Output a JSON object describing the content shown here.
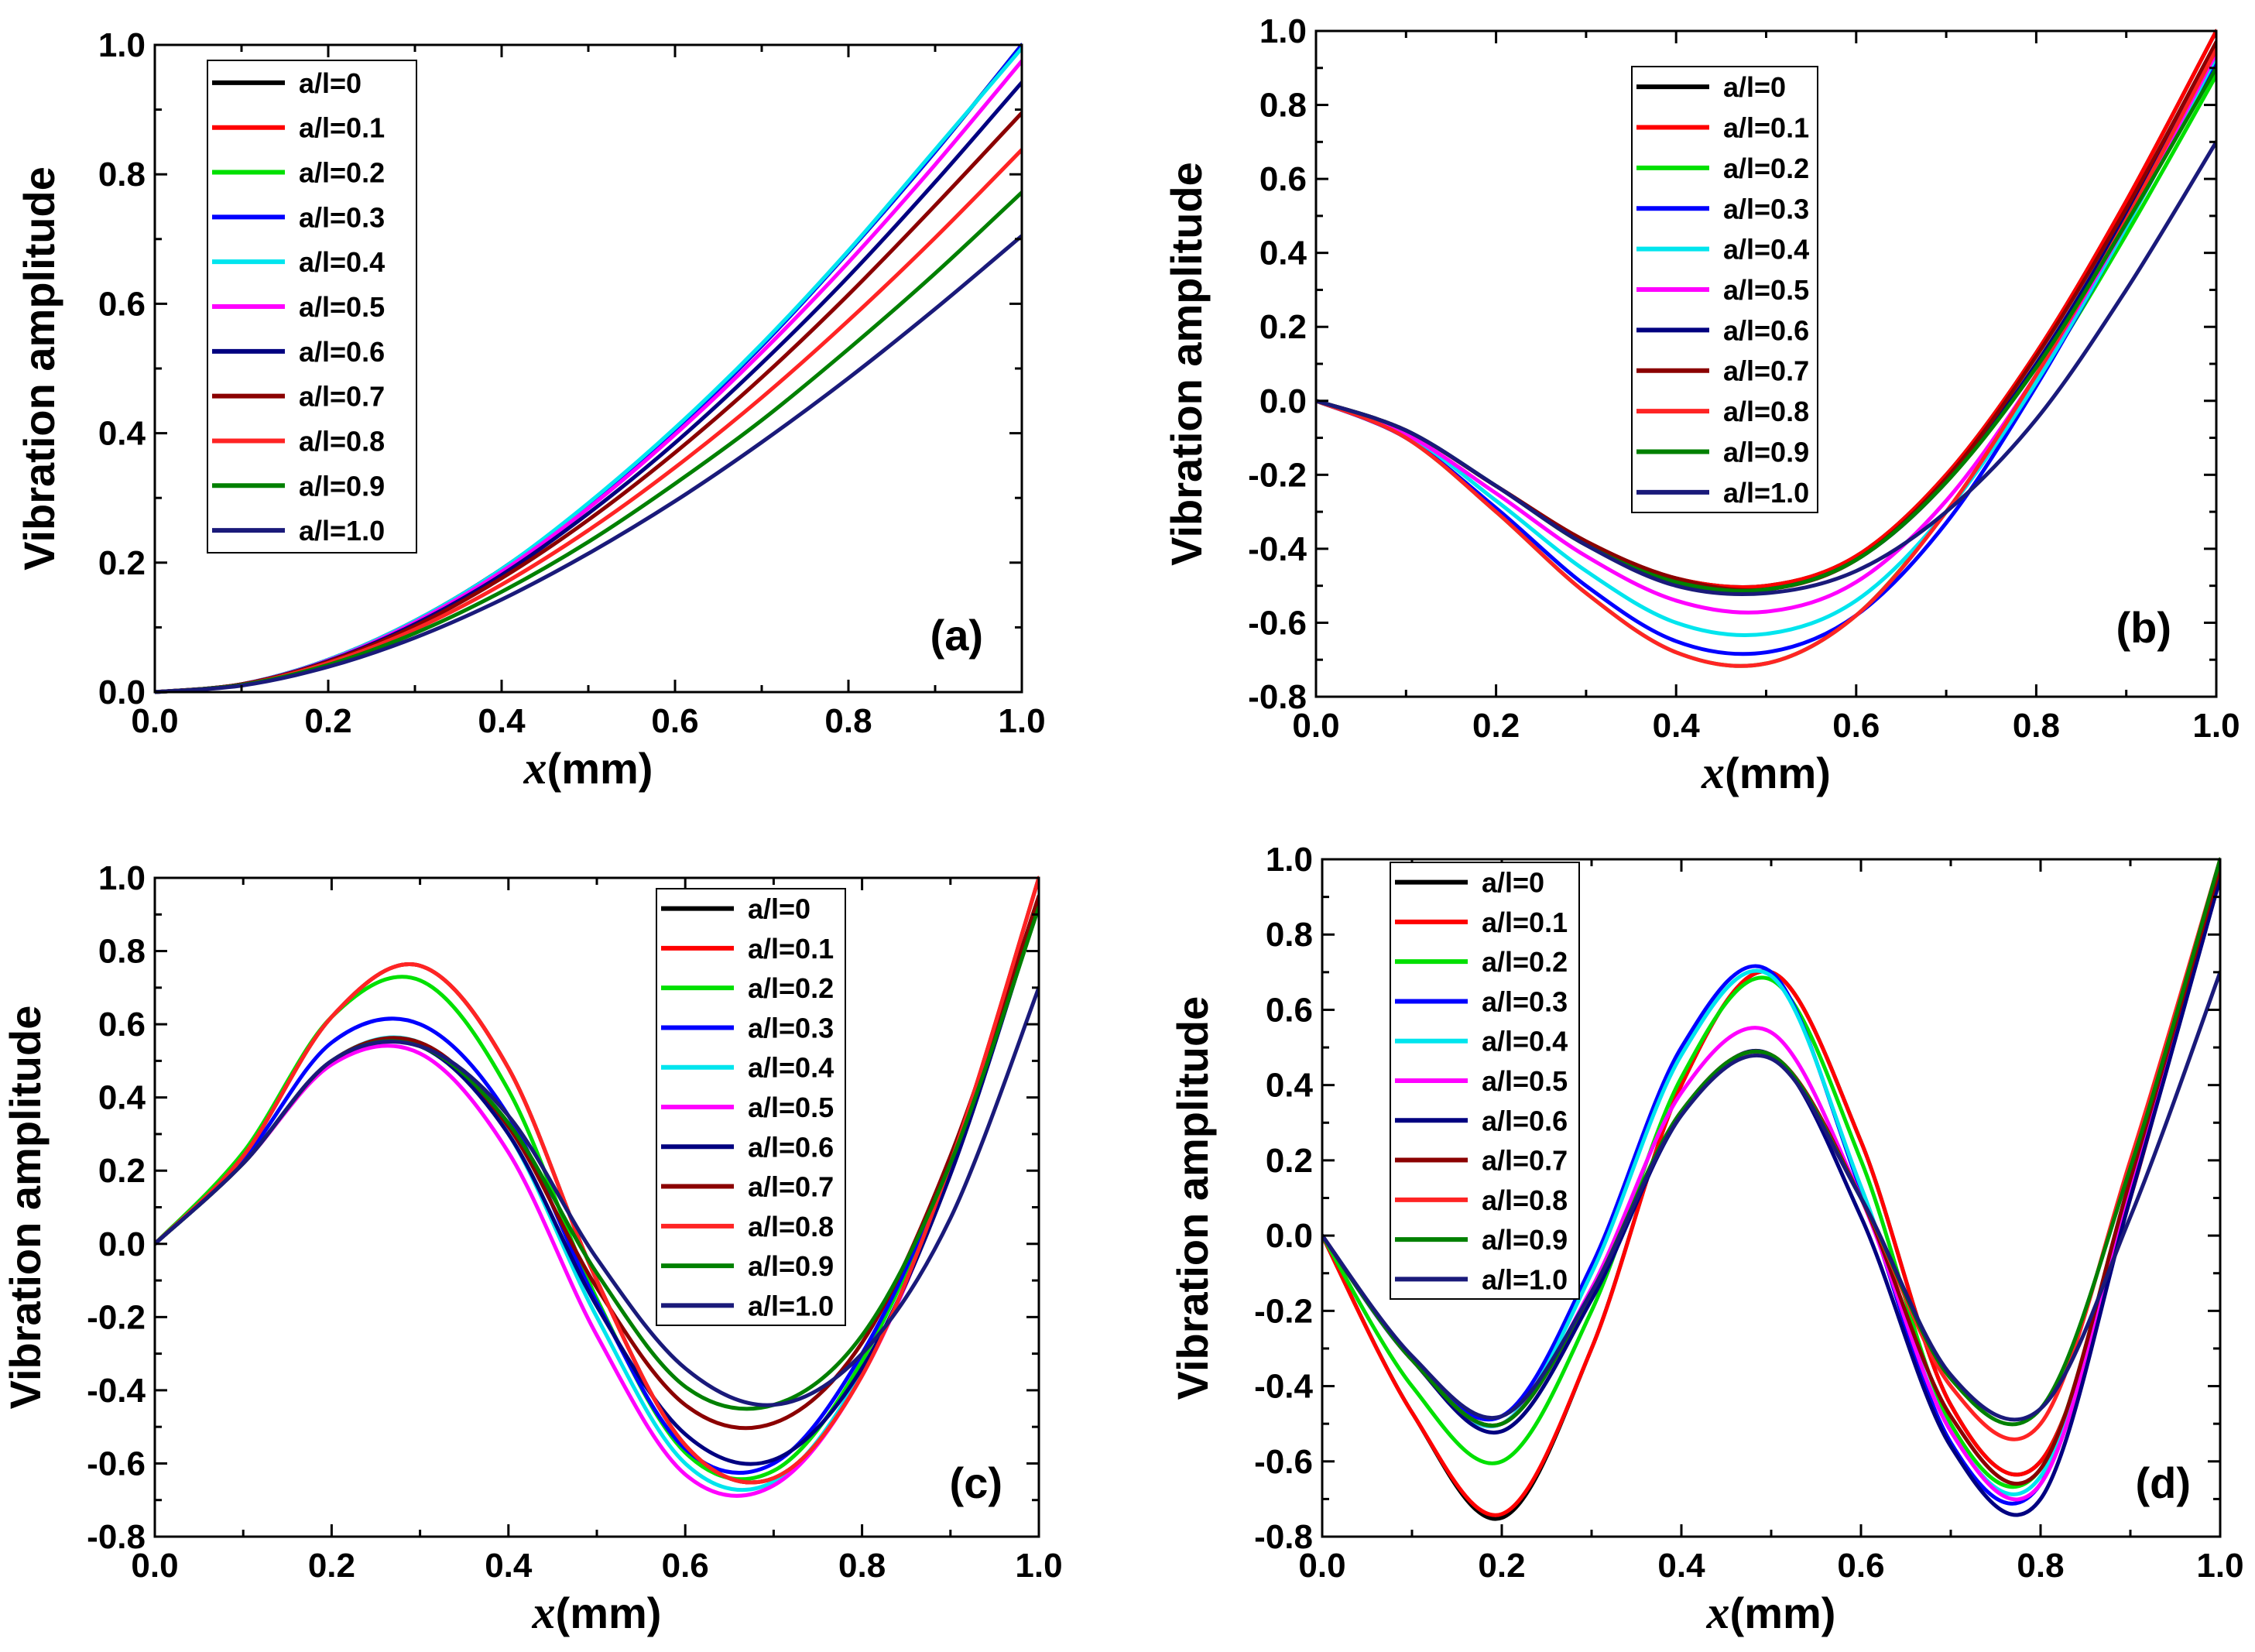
{
  "chart_data": [
    {
      "type": "line",
      "panel_label": "(a)",
      "xlabel_var": "x",
      "xlabel_unit": "(mm)",
      "ylabel": "Vibration amplitude",
      "xlim": [
        0.0,
        1.0
      ],
      "ylim": [
        0.0,
        1.0
      ],
      "xticks": [
        "0.0",
        "0.2",
        "0.4",
        "0.6",
        "0.8",
        "1.0"
      ],
      "yticks": [
        "0.0",
        "0.2",
        "0.4",
        "0.6",
        "0.8",
        "1.0"
      ],
      "legend_position": "top-left",
      "x": [
        0,
        0.1,
        0.2,
        0.3,
        0.4,
        0.5,
        0.6,
        0.7,
        0.8,
        0.9,
        1.0
      ],
      "series": [
        {
          "name": "a/l=0",
          "color": "#000000",
          "values": [
            0,
            0.012,
            0.05,
            0.11,
            0.19,
            0.29,
            0.405,
            0.535,
            0.68,
            0.835,
            1.0
          ]
        },
        {
          "name": "a/l=0.1",
          "color": "#ff0000",
          "values": [
            0,
            0.012,
            0.05,
            0.11,
            0.19,
            0.29,
            0.405,
            0.535,
            0.68,
            0.835,
            1.0
          ]
        },
        {
          "name": "a/l=0.2",
          "color": "#00e000",
          "values": [
            0,
            0.012,
            0.05,
            0.11,
            0.19,
            0.29,
            0.405,
            0.535,
            0.68,
            0.835,
            1.0
          ]
        },
        {
          "name": "a/l=0.3",
          "color": "#0000ff",
          "values": [
            0,
            0.012,
            0.05,
            0.11,
            0.19,
            0.29,
            0.405,
            0.535,
            0.68,
            0.835,
            1.0
          ]
        },
        {
          "name": "a/l=0.4",
          "color": "#00e5ee",
          "values": [
            0,
            0.012,
            0.05,
            0.11,
            0.19,
            0.292,
            0.408,
            0.538,
            0.682,
            0.838,
            0.995
          ]
        },
        {
          "name": "a/l=0.5",
          "color": "#ff00ff",
          "values": [
            0,
            0.012,
            0.049,
            0.108,
            0.186,
            0.284,
            0.398,
            0.525,
            0.664,
            0.815,
            0.975
          ]
        },
        {
          "name": "a/l=0.6",
          "color": "#000080",
          "values": [
            0,
            0.012,
            0.048,
            0.105,
            0.181,
            0.276,
            0.385,
            0.508,
            0.642,
            0.788,
            0.942
          ]
        },
        {
          "name": "a/l=0.7",
          "color": "#8b0000",
          "values": [
            0,
            0.012,
            0.047,
            0.102,
            0.176,
            0.266,
            0.37,
            0.486,
            0.614,
            0.752,
            0.895
          ]
        },
        {
          "name": "a/l=0.8",
          "color": "#ff2424",
          "values": [
            0,
            0.011,
            0.045,
            0.097,
            0.166,
            0.25,
            0.347,
            0.455,
            0.574,
            0.702,
            0.838
          ]
        },
        {
          "name": "a/l=0.9",
          "color": "#008000",
          "values": [
            0,
            0.011,
            0.042,
            0.091,
            0.155,
            0.232,
            0.322,
            0.42,
            0.53,
            0.647,
            0.772
          ]
        },
        {
          "name": "a/l=1.0",
          "color": "#1a1a7a",
          "values": [
            0,
            0.01,
            0.039,
            0.084,
            0.143,
            0.214,
            0.295,
            0.386,
            0.485,
            0.592,
            0.705
          ]
        }
      ]
    },
    {
      "type": "line",
      "panel_label": "(b)",
      "xlabel_var": "x",
      "xlabel_unit": "(mm)",
      "ylabel": "Vibration amplitude",
      "xlim": [
        0.0,
        1.0
      ],
      "ylim": [
        -0.8,
        1.0
      ],
      "xticks": [
        "0.0",
        "0.2",
        "0.4",
        "0.6",
        "0.8",
        "1.0"
      ],
      "yticks": [
        "-0.8",
        "-0.6",
        "-0.4",
        "-0.2",
        "0.0",
        "0.2",
        "0.4",
        "0.6",
        "0.8",
        "1.0"
      ],
      "legend_position": "top-center",
      "x": [
        0,
        0.1,
        0.2,
        0.3,
        0.4,
        0.5,
        0.6,
        0.7,
        0.8,
        0.9,
        1.0
      ],
      "series": [
        {
          "name": "a/l=0",
          "color": "#000000",
          "values": [
            0,
            -0.08,
            -0.23,
            -0.38,
            -0.48,
            -0.5,
            -0.42,
            -0.2,
            0.13,
            0.54,
            1.0
          ]
        },
        {
          "name": "a/l=0.1",
          "color": "#ff0000",
          "values": [
            0,
            -0.08,
            -0.23,
            -0.38,
            -0.48,
            -0.5,
            -0.42,
            -0.2,
            0.13,
            0.54,
            1.0
          ]
        },
        {
          "name": "a/l=0.2",
          "color": "#00e000",
          "values": [
            0,
            -0.1,
            -0.3,
            -0.52,
            -0.68,
            -0.71,
            -0.58,
            -0.3,
            0.05,
            0.45,
            0.88
          ]
        },
        {
          "name": "a/l=0.3",
          "color": "#0000ff",
          "values": [
            0,
            -0.1,
            -0.29,
            -0.5,
            -0.65,
            -0.68,
            -0.58,
            -0.33,
            0.04,
            0.47,
            0.92
          ]
        },
        {
          "name": "a/l=0.4",
          "color": "#00e5ee",
          "values": [
            0,
            -0.09,
            -0.27,
            -0.46,
            -0.6,
            -0.63,
            -0.54,
            -0.3,
            0.05,
            0.47,
            0.93
          ]
        },
        {
          "name": "a/l=0.5",
          "color": "#ff00ff",
          "values": [
            0,
            -0.09,
            -0.25,
            -0.42,
            -0.54,
            -0.57,
            -0.49,
            -0.27,
            0.07,
            0.48,
            0.94
          ]
        },
        {
          "name": "a/l=0.6",
          "color": "#000080",
          "values": [
            0,
            -0.08,
            -0.23,
            -0.39,
            -0.49,
            -0.51,
            -0.43,
            -0.22,
            0.1,
            0.5,
            0.95
          ]
        },
        {
          "name": "a/l=0.7",
          "color": "#8b0000",
          "values": [
            0,
            -0.08,
            -0.23,
            -0.38,
            -0.48,
            -0.51,
            -0.43,
            -0.21,
            0.12,
            0.52,
            0.97
          ]
        },
        {
          "name": "a/l=0.8",
          "color": "#ff2424",
          "values": [
            0,
            -0.1,
            -0.3,
            -0.52,
            -0.68,
            -0.71,
            -0.58,
            -0.3,
            0.07,
            0.49,
            0.95
          ]
        },
        {
          "name": "a/l=0.9",
          "color": "#008000",
          "values": [
            0,
            -0.08,
            -0.23,
            -0.39,
            -0.49,
            -0.51,
            -0.43,
            -0.22,
            0.09,
            0.48,
            0.9
          ]
        },
        {
          "name": "a/l=1.0",
          "color": "#1a1a7a",
          "values": [
            0,
            -0.08,
            -0.23,
            -0.39,
            -0.5,
            -0.52,
            -0.46,
            -0.3,
            -0.05,
            0.3,
            0.7
          ]
        }
      ]
    },
    {
      "type": "line",
      "panel_label": "(c)",
      "xlabel_var": "x",
      "xlabel_unit": "(mm)",
      "ylabel": "Vibration amplitude",
      "xlim": [
        0.0,
        1.0
      ],
      "ylim": [
        -0.8,
        1.0
      ],
      "xticks": [
        "0.0",
        "0.2",
        "0.4",
        "0.6",
        "0.8",
        "1.0"
      ],
      "yticks": [
        "-0.8",
        "-0.6",
        "-0.4",
        "-0.2",
        "0.0",
        "0.2",
        "0.4",
        "0.6",
        "0.8",
        "1.0"
      ],
      "legend_position": "top-right",
      "x": [
        0,
        0.1,
        0.2,
        0.3,
        0.4,
        0.5,
        0.6,
        0.7,
        0.8,
        0.9,
        1.0
      ],
      "series": [
        {
          "name": "a/l=0",
          "color": "#000000",
          "values": [
            0,
            0.24,
            0.62,
            0.76,
            0.48,
            -0.1,
            -0.55,
            -0.64,
            -0.36,
            0.22,
            1.0
          ]
        },
        {
          "name": "a/l=0.1",
          "color": "#ff0000",
          "values": [
            0,
            0.24,
            0.62,
            0.76,
            0.48,
            -0.1,
            -0.55,
            -0.64,
            -0.36,
            0.22,
            1.0
          ]
        },
        {
          "name": "a/l=0.2",
          "color": "#00e000",
          "values": [
            0,
            0.25,
            0.62,
            0.72,
            0.42,
            -0.15,
            -0.57,
            -0.62,
            -0.32,
            0.22,
            0.95
          ]
        },
        {
          "name": "a/l=0.3",
          "color": "#0000ff",
          "values": [
            0,
            0.23,
            0.55,
            0.6,
            0.35,
            -0.16,
            -0.56,
            -0.6,
            -0.3,
            0.22,
            0.93
          ]
        },
        {
          "name": "a/l=0.4",
          "color": "#00e5ee",
          "values": [
            0,
            0.22,
            0.5,
            0.55,
            0.3,
            -0.2,
            -0.6,
            -0.65,
            -0.35,
            0.2,
            0.93
          ]
        },
        {
          "name": "a/l=0.5",
          "color": "#ff00ff",
          "values": [
            0,
            0.22,
            0.49,
            0.52,
            0.25,
            -0.25,
            -0.63,
            -0.66,
            -0.36,
            0.2,
            0.95
          ]
        },
        {
          "name": "a/l=0.6",
          "color": "#000080",
          "values": [
            0,
            0.22,
            0.5,
            0.54,
            0.3,
            -0.17,
            -0.52,
            -0.59,
            -0.34,
            0.19,
            0.93
          ]
        },
        {
          "name": "a/l=0.7",
          "color": "#8b0000",
          "values": [
            0,
            0.22,
            0.5,
            0.55,
            0.32,
            -0.12,
            -0.44,
            -0.49,
            -0.27,
            0.24,
            0.95
          ]
        },
        {
          "name": "a/l=0.8",
          "color": "#ff2424",
          "values": [
            0,
            0.24,
            0.62,
            0.76,
            0.48,
            -0.1,
            -0.55,
            -0.64,
            -0.36,
            0.22,
            1.0
          ]
        },
        {
          "name": "a/l=0.9",
          "color": "#008000",
          "values": [
            0,
            0.22,
            0.5,
            0.54,
            0.33,
            -0.08,
            -0.39,
            -0.44,
            -0.25,
            0.22,
            0.92
          ]
        },
        {
          "name": "a/l=1.0",
          "color": "#1a1a7a",
          "values": [
            0,
            0.22,
            0.5,
            0.54,
            0.35,
            -0.04,
            -0.34,
            -0.44,
            -0.3,
            0.07,
            0.7
          ]
        }
      ]
    },
    {
      "type": "line",
      "panel_label": "(d)",
      "xlabel_var": "x",
      "xlabel_unit": "(mm)",
      "ylabel": "Vibration amplitude",
      "xlim": [
        0.0,
        1.0
      ],
      "ylim": [
        -0.8,
        1.0
      ],
      "xticks": [
        "0.0",
        "0.2",
        "0.4",
        "0.6",
        "0.8",
        "1.0"
      ],
      "yticks": [
        "-0.8",
        "-0.6",
        "-0.4",
        "-0.2",
        "0.0",
        "0.2",
        "0.4",
        "0.6",
        "0.8",
        "1.0"
      ],
      "legend_position": "top-left",
      "x": [
        0,
        0.1,
        0.2,
        0.3,
        0.4,
        0.5,
        0.6,
        0.7,
        0.8,
        0.9,
        1.0
      ],
      "series": [
        {
          "name": "a/l=0",
          "color": "#000000",
          "values": [
            0,
            -0.47,
            -0.75,
            -0.3,
            0.4,
            0.7,
            0.25,
            -0.45,
            -0.6,
            0.1,
            1.0
          ]
        },
        {
          "name": "a/l=0.1",
          "color": "#ff0000",
          "values": [
            0,
            -0.47,
            -0.74,
            -0.3,
            0.4,
            0.7,
            0.25,
            -0.45,
            -0.6,
            0.1,
            1.0
          ]
        },
        {
          "name": "a/l=0.2",
          "color": "#00e000",
          "values": [
            0,
            -0.4,
            -0.6,
            -0.2,
            0.42,
            0.68,
            0.2,
            -0.5,
            -0.62,
            0.15,
            1.0
          ]
        },
        {
          "name": "a/l=0.3",
          "color": "#0000ff",
          "values": [
            0,
            -0.33,
            -0.48,
            -0.08,
            0.5,
            0.7,
            0.12,
            -0.55,
            -0.66,
            0.15,
            0.95
          ]
        },
        {
          "name": "a/l=0.4",
          "color": "#00e5ee",
          "values": [
            0,
            -0.33,
            -0.5,
            -0.1,
            0.48,
            0.69,
            0.13,
            -0.52,
            -0.64,
            0.15,
            0.97
          ]
        },
        {
          "name": "a/l=0.5",
          "color": "#ff00ff",
          "values": [
            0,
            -0.33,
            -0.5,
            -0.14,
            0.38,
            0.54,
            0.1,
            -0.52,
            -0.66,
            0.12,
            0.95
          ]
        },
        {
          "name": "a/l=0.6",
          "color": "#000080",
          "values": [
            0,
            -0.33,
            -0.52,
            -0.17,
            0.32,
            0.48,
            0.05,
            -0.56,
            -0.7,
            0.1,
            0.95
          ]
        },
        {
          "name": "a/l=0.7",
          "color": "#8b0000",
          "values": [
            0,
            -0.33,
            -0.5,
            -0.15,
            0.33,
            0.48,
            0.1,
            -0.48,
            -0.62,
            0.15,
            0.98
          ]
        },
        {
          "name": "a/l=0.8",
          "color": "#ff2424",
          "values": [
            0,
            -0.33,
            -0.5,
            -0.15,
            0.33,
            0.48,
            0.1,
            -0.4,
            -0.5,
            0.2,
            1.0
          ]
        },
        {
          "name": "a/l=0.9",
          "color": "#008000",
          "values": [
            0,
            -0.33,
            -0.5,
            -0.15,
            0.33,
            0.48,
            0.1,
            -0.38,
            -0.46,
            0.18,
            1.0
          ]
        },
        {
          "name": "a/l=1.0",
          "color": "#1a1a7a",
          "values": [
            0,
            -0.32,
            -0.48,
            -0.15,
            0.32,
            0.47,
            0.1,
            -0.37,
            -0.46,
            0.05,
            0.7
          ]
        }
      ]
    }
  ]
}
